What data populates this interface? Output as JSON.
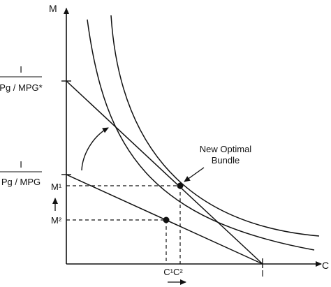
{
  "axes": {
    "y_label": "M",
    "x_label": "C"
  },
  "intercepts": {
    "upper": {
      "numerator": "I",
      "denominator": "Pg / MPG*"
    },
    "lower": {
      "numerator": "I",
      "denominator": "Pg / MPG"
    },
    "x_intercept": "I"
  },
  "points": {
    "m1_label": "M¹",
    "m2_label": "M²",
    "c_label": "C¹C²"
  },
  "annotation": {
    "line1": "New Optimal",
    "line2": "Bundle"
  },
  "colors": {
    "ink": "#111111",
    "background": "#ffffff"
  }
}
